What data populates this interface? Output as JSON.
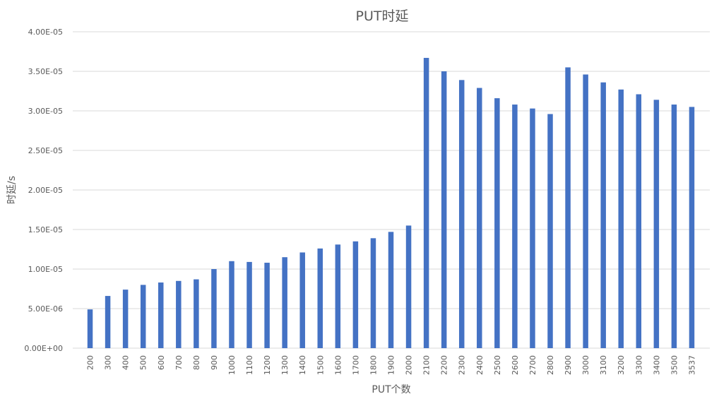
{
  "chart_data": {
    "type": "bar",
    "title": "PUT时延",
    "xlabel": "PUT个数",
    "ylabel": "时延/s",
    "categories": [
      "200",
      "300",
      "400",
      "500",
      "600",
      "700",
      "800",
      "900",
      "1000",
      "1100",
      "1200",
      "1300",
      "1400",
      "1500",
      "1600",
      "1700",
      "1800",
      "1900",
      "2000",
      "2100",
      "2200",
      "2300",
      "2400",
      "2500",
      "2600",
      "2700",
      "2800",
      "2900",
      "3000",
      "3100",
      "3200",
      "3300",
      "3400",
      "3500",
      "3537"
    ],
    "series": [
      {
        "values": [
          4.9e-06,
          6.6e-06,
          7.4e-06,
          8e-06,
          8.3e-06,
          8.5e-06,
          8.7e-06,
          1e-05,
          1.1e-05,
          1.09e-05,
          1.08e-05,
          1.15e-05,
          1.21e-05,
          1.26e-05,
          1.31e-05,
          1.35e-05,
          1.39e-05,
          1.47e-05,
          1.55e-05,
          3.67e-05,
          3.5e-05,
          3.39e-05,
          3.29e-05,
          3.16e-05,
          3.08e-05,
          3.03e-05,
          2.96e-05,
          3.55e-05,
          3.46e-05,
          3.36e-05,
          3.27e-05,
          3.21e-05,
          3.14e-05,
          3.08e-05,
          3.05e-05
        ]
      }
    ],
    "yticks": [
      "0.00E+00",
      "5.00E-06",
      "1.00E-05",
      "1.50E-05",
      "2.00E-05",
      "2.50E-05",
      "3.00E-05",
      "3.50E-05",
      "4.00E-05"
    ],
    "ylim": [
      0,
      4e-05
    ],
    "grid": true,
    "legend": "none",
    "bar_color": "#4472c4"
  }
}
